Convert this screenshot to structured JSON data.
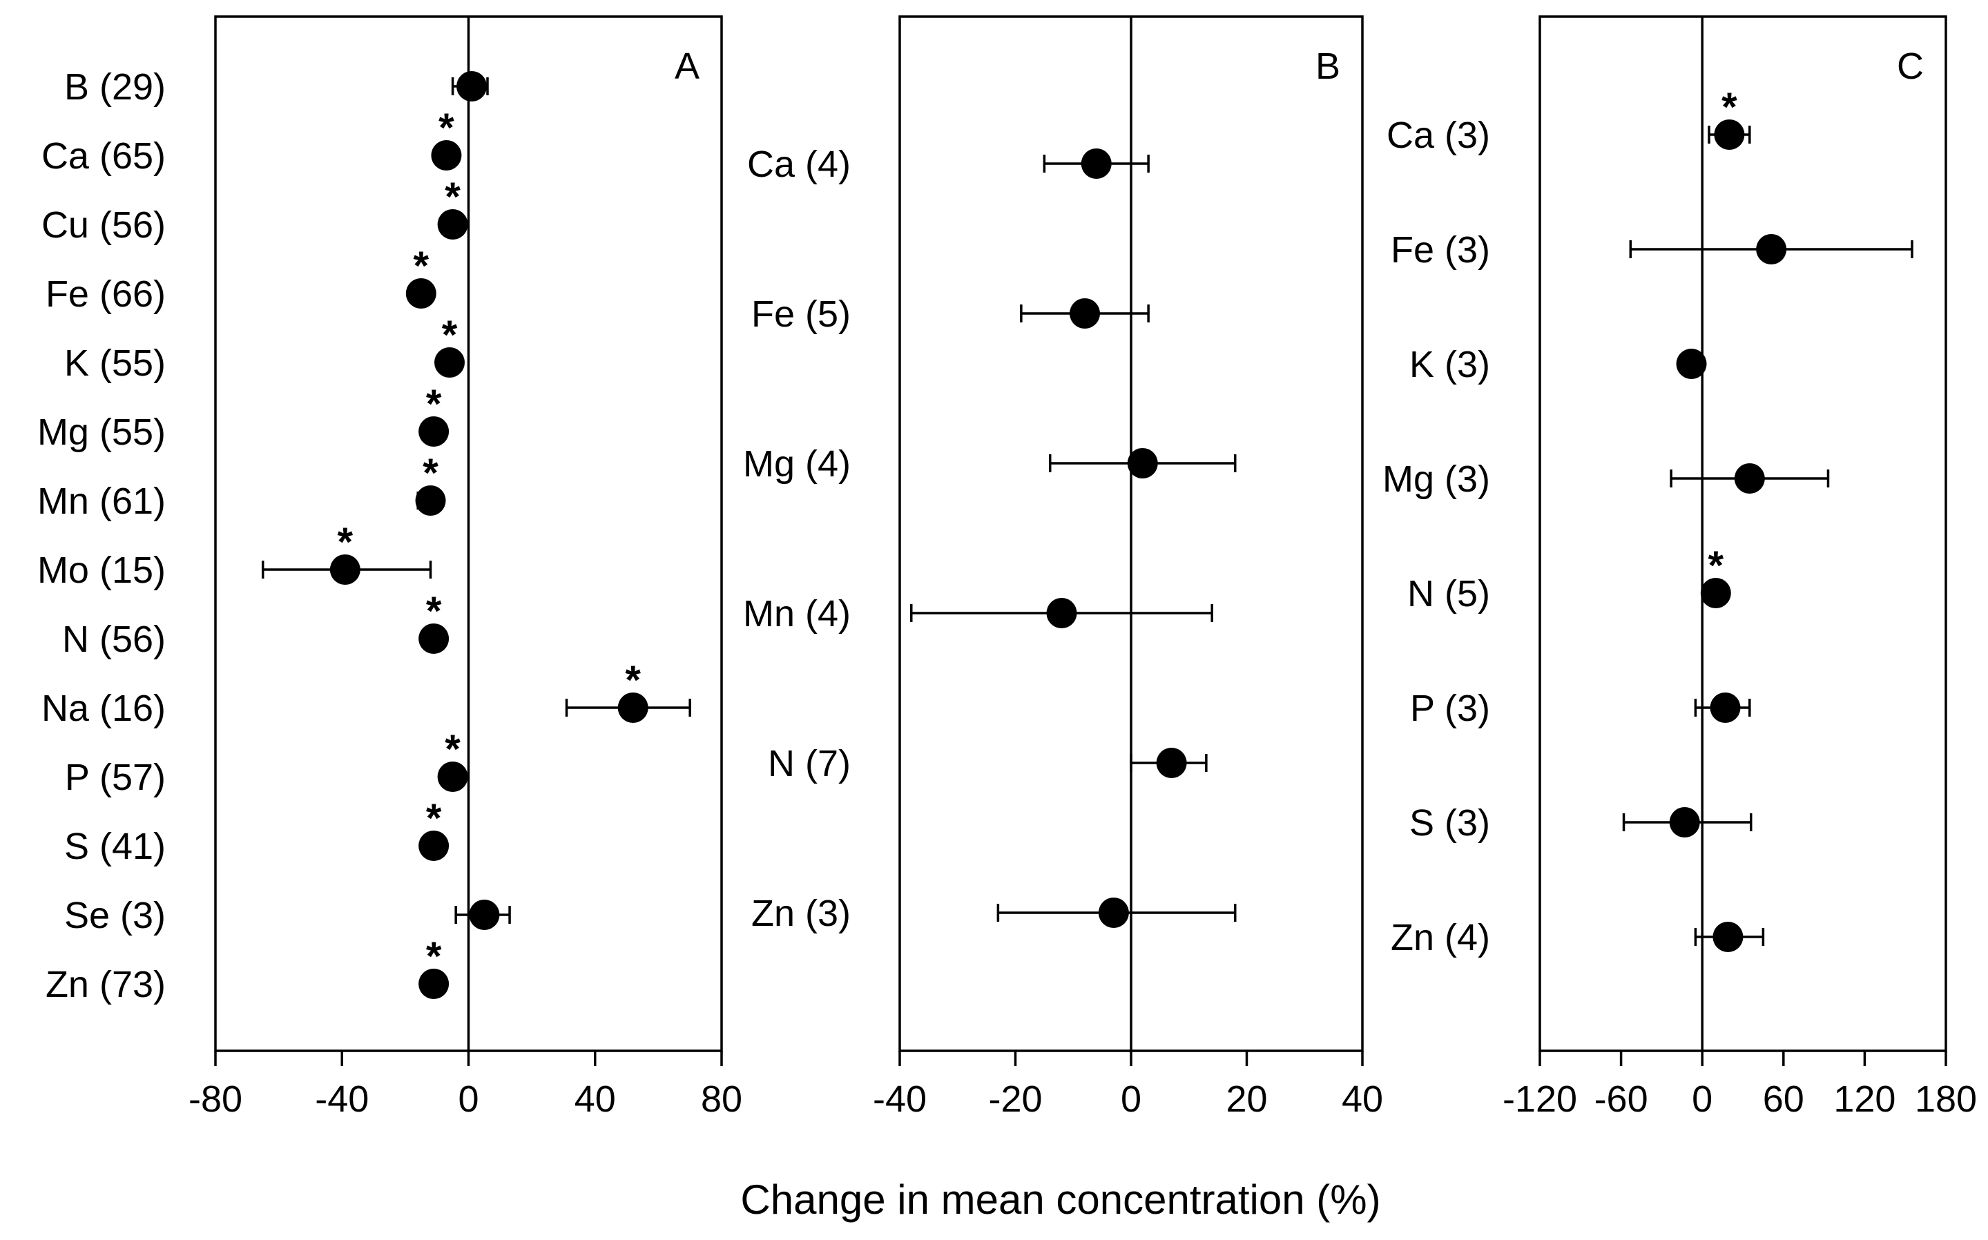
{
  "chart_data": [
    {
      "type": "scatter",
      "panel": "A",
      "categories": [
        "B (29)",
        "Ca (65)",
        "Cu (56)",
        "Fe (66)",
        "K (55)",
        "Mg (55)",
        "Mn (61)",
        "Mo (15)",
        "N (56)",
        "Na (16)",
        "P (57)",
        "S (41)",
        "Se (3)",
        "Zn (73)"
      ],
      "values": [
        1,
        -7,
        -5,
        -15,
        -6,
        -11,
        -12,
        -39,
        -11,
        52,
        -5,
        -11,
        5,
        -11
      ],
      "lower": [
        -5,
        -10,
        -7,
        -18,
        -8,
        -13,
        -16,
        -65,
        -12,
        31,
        -7,
        -12,
        -4,
        -12
      ],
      "upper": [
        6,
        -5,
        -4,
        -12,
        -4,
        -9,
        -9,
        -12,
        -10,
        70,
        -3,
        -9,
        13,
        -10
      ],
      "significant": [
        false,
        true,
        true,
        true,
        true,
        true,
        true,
        true,
        true,
        true,
        true,
        true,
        false,
        true
      ],
      "xlim": [
        -80,
        80
      ],
      "xticks": [
        -80,
        -40,
        0,
        40,
        80
      ],
      "xticklabels": [
        "-80",
        "-40",
        "0",
        "40",
        "80"
      ]
    },
    {
      "type": "scatter",
      "panel": "B",
      "categories": [
        "Ca (4)",
        "Fe (5)",
        "Mg (4)",
        "Mn (4)",
        "N (7)",
        "Zn (3)"
      ],
      "values": [
        -6,
        -8,
        2,
        -12,
        7,
        -3
      ],
      "lower": [
        -15,
        -19,
        -14,
        -38,
        0,
        -23
      ],
      "upper": [
        3,
        3,
        18,
        14,
        13,
        18
      ],
      "significant": [
        false,
        false,
        false,
        false,
        false,
        false
      ],
      "xlim": [
        -40,
        40
      ],
      "xticks": [
        -40,
        -20,
        0,
        20,
        40
      ],
      "xticklabels": [
        "-40",
        "-20",
        "0",
        "20",
        "40"
      ]
    },
    {
      "type": "scatter",
      "panel": "C",
      "categories": [
        "Ca (3)",
        "Fe (3)",
        "K (3)",
        "Mg (3)",
        "N (5)",
        "P (3)",
        "S (3)",
        "Zn (4)"
      ],
      "values": [
        20,
        51,
        -8,
        35,
        10,
        17,
        -13,
        19
      ],
      "lower": [
        5,
        -53,
        -15,
        -23,
        5,
        -5,
        -58,
        -5
      ],
      "upper": [
        35,
        155,
        -2,
        93,
        15,
        35,
        36,
        45
      ],
      "significant": [
        true,
        false,
        false,
        false,
        true,
        false,
        false,
        false
      ],
      "xlim": [
        -120,
        180
      ],
      "xticks": [
        -120,
        -60,
        0,
        60,
        120,
        180
      ],
      "xticklabels": [
        "-120",
        "-60",
        "0",
        "60",
        "120",
        "180"
      ]
    }
  ],
  "panel_labels": [
    "A",
    "B",
    "C"
  ],
  "significance_marker": "*",
  "xlabel": "Change in mean concentration (%)"
}
